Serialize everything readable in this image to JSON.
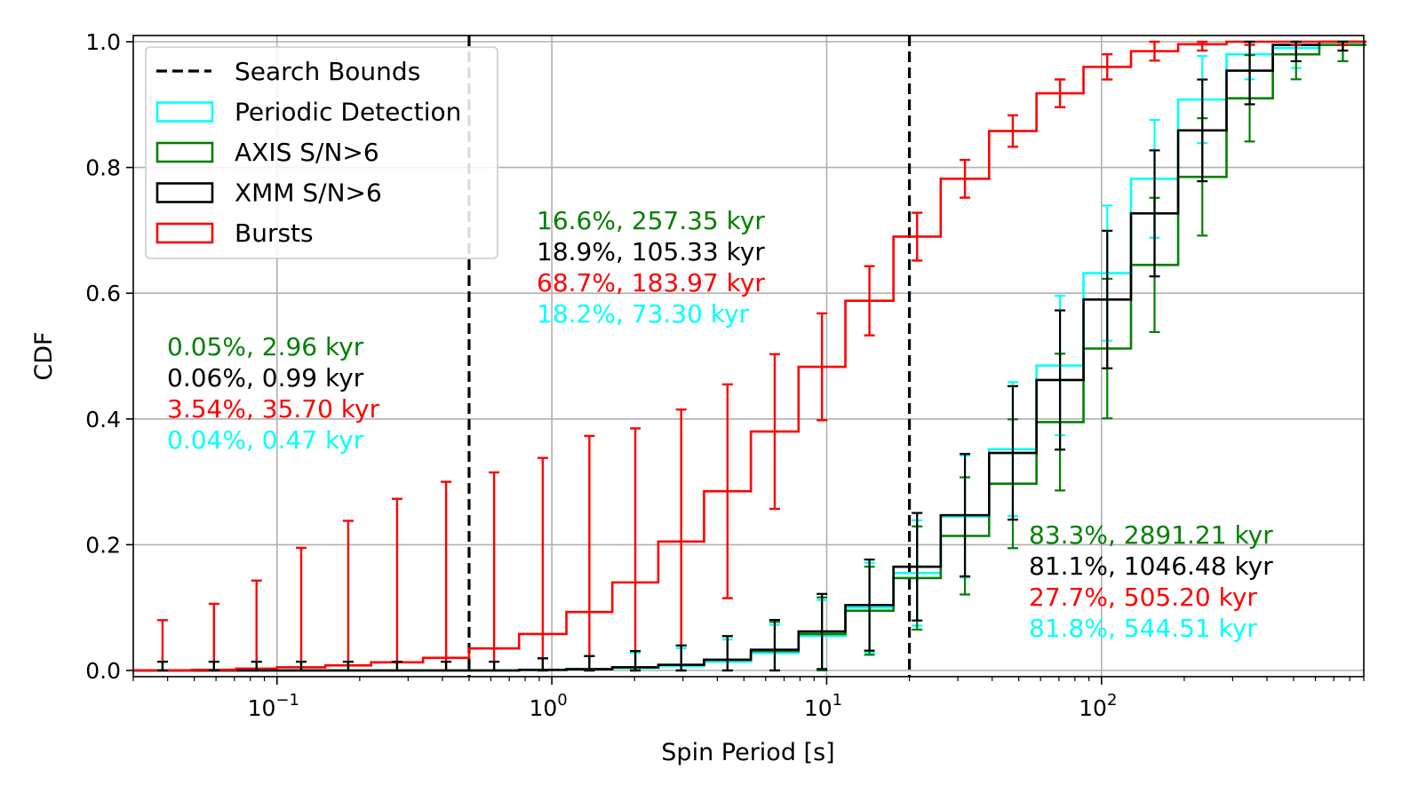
{
  "chart_data": {
    "type": "line",
    "xlabel": "Spin Period [s]",
    "ylabel": "CDF",
    "xscale": "log",
    "xlim": [
      0.03,
      900
    ],
    "ylim": [
      0,
      1.0
    ],
    "grid": true,
    "legend_position": "top-left",
    "x_ticks": [
      {
        "value": 0.1,
        "base": "10",
        "exp": "−1"
      },
      {
        "value": 1,
        "base": "10",
        "exp": "0"
      },
      {
        "value": 10,
        "base": "10",
        "exp": "1"
      },
      {
        "value": 100,
        "base": "10",
        "exp": "2"
      }
    ],
    "y_ticks": [
      {
        "value": 0.0,
        "label": "0.0"
      },
      {
        "value": 0.2,
        "label": "0.2"
      },
      {
        "value": 0.4,
        "label": "0.4"
      },
      {
        "value": 0.6,
        "label": "0.6"
      },
      {
        "value": 0.8,
        "label": "0.8"
      },
      {
        "value": 1.0,
        "label": "1.0"
      }
    ],
    "bin_edges": [
      0.03,
      0.049,
      0.071,
      0.1,
      0.15,
      0.22,
      0.34,
      0.5,
      0.76,
      1.13,
      1.66,
      2.44,
      3.58,
      5.3,
      7.9,
      11.7,
      17.5,
      26,
      39,
      58,
      86,
      128,
      190,
      285,
      420,
      620,
      920
    ],
    "search_bounds": [
      0.5,
      20
    ],
    "series": [
      {
        "name": "Bursts",
        "color": "#ff0000",
        "values": [
          0.0,
          0.001,
          0.003,
          0.005,
          0.008,
          0.013,
          0.02,
          0.035,
          0.058,
          0.093,
          0.14,
          0.205,
          0.285,
          0.38,
          0.483,
          0.588,
          0.69,
          0.782,
          0.858,
          0.918,
          0.96,
          0.985,
          0.996,
          1.0,
          1.0,
          1.0
        ],
        "errors": [
          0.08,
          0.105,
          0.14,
          0.19,
          0.23,
          0.26,
          0.28,
          0.28,
          0.28,
          0.28,
          0.245,
          0.21,
          0.17,
          0.123,
          0.085,
          0.055,
          0.038,
          0.03,
          0.025,
          0.022,
          0.02,
          0.015,
          0.01,
          0.005,
          0.005,
          0.005
        ]
      },
      {
        "name": "Periodic Detection",
        "color": "#00ffff",
        "values": [
          0.0,
          0.0,
          0.0,
          0.0,
          0.0,
          0.0,
          0.0,
          0.0,
          0.001,
          0.002,
          0.004,
          0.007,
          0.014,
          0.028,
          0.055,
          0.1,
          0.155,
          0.245,
          0.352,
          0.485,
          0.632,
          0.782,
          0.908,
          0.98,
          0.99,
          0.995
        ]
      },
      {
        "name": "AXIS S/N>6",
        "color": "#008000",
        "values": [
          0.0,
          0.0,
          0.0,
          0.0,
          0.0,
          0.0,
          0.0,
          0.0,
          0.001,
          0.002,
          0.005,
          0.009,
          0.017,
          0.031,
          0.058,
          0.095,
          0.147,
          0.214,
          0.297,
          0.395,
          0.512,
          0.645,
          0.785,
          0.91,
          0.98,
          0.995
        ]
      },
      {
        "name": "XMM S/N>6",
        "color": "#000000",
        "values": [
          0.0,
          0.0,
          0.0,
          0.0,
          0.0,
          0.0,
          0.0,
          0.0,
          0.001,
          0.002,
          0.005,
          0.009,
          0.017,
          0.033,
          0.062,
          0.104,
          0.165,
          0.247,
          0.346,
          0.462,
          0.59,
          0.727,
          0.859,
          0.954,
          0.995,
          1.0
        ]
      }
    ],
    "legend": [
      {
        "label": "Search Bounds",
        "kind": "dashed",
        "color": "#000000"
      },
      {
        "label": "Periodic Detection",
        "kind": "box",
        "color": "#00ffff"
      },
      {
        "label": "AXIS S/N>6",
        "kind": "box",
        "color": "#008000"
      },
      {
        "label": "XMM S/N>6",
        "kind": "box",
        "color": "#000000"
      },
      {
        "label": "Bursts",
        "kind": "box",
        "color": "#ff0000"
      }
    ],
    "annotations": [
      {
        "group": "left",
        "lines": [
          {
            "text": "0.05%, 2.96 kyr",
            "color": "#008000"
          },
          {
            "text": "0.06%, 0.99 kyr",
            "color": "#000000"
          },
          {
            "text": "3.54%, 35.70 kyr",
            "color": "#ff0000"
          },
          {
            "text": "0.04%, 0.47 kyr",
            "color": "#00ffff"
          }
        ]
      },
      {
        "group": "middle",
        "lines": [
          {
            "text": "16.6%, 257.35 kyr",
            "color": "#008000"
          },
          {
            "text": "18.9%, 105.33 kyr",
            "color": "#000000"
          },
          {
            "text": "68.7%, 183.97 kyr",
            "color": "#ff0000"
          },
          {
            "text": "18.2%, 73.30 kyr",
            "color": "#00ffff"
          }
        ]
      },
      {
        "group": "right",
        "lines": [
          {
            "text": "83.3%, 2891.21 kyr",
            "color": "#008000"
          },
          {
            "text": "81.1%, 1046.48 kyr",
            "color": "#000000"
          },
          {
            "text": "27.7%, 505.20 kyr",
            "color": "#ff0000"
          },
          {
            "text": "81.8%, 544.51 kyr",
            "color": "#00ffff"
          }
        ]
      }
    ]
  }
}
